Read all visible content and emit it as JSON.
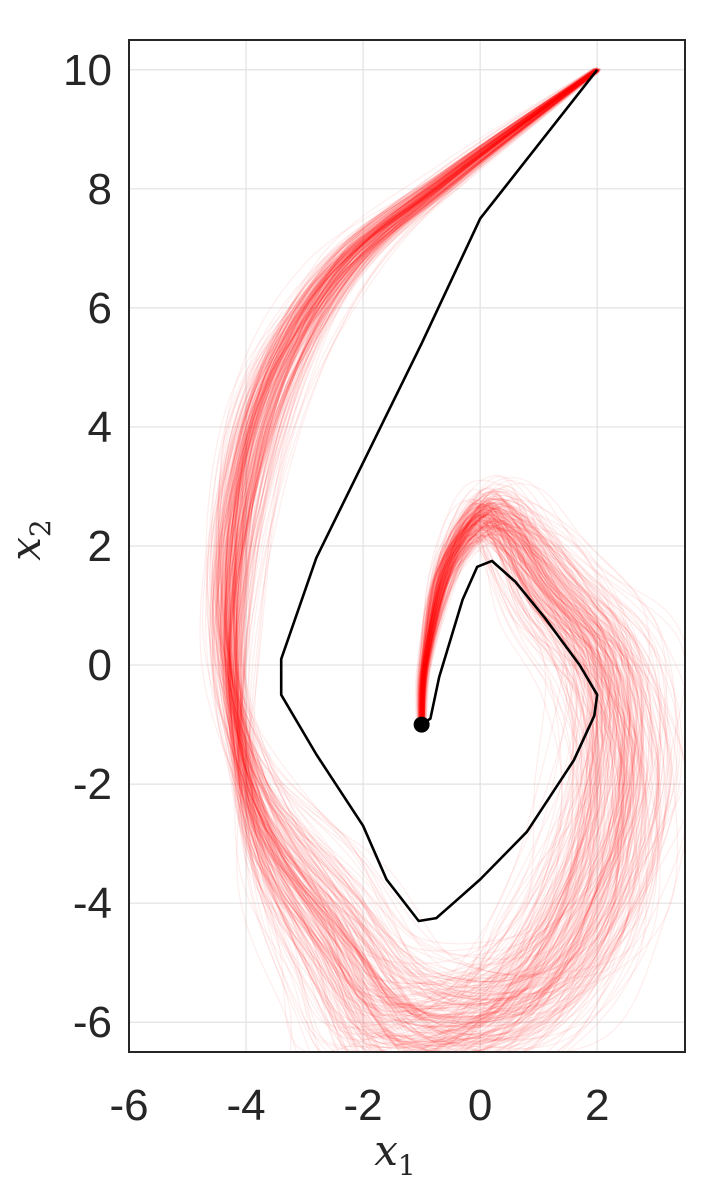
{
  "chart_data": {
    "type": "line",
    "title": "",
    "xlabel": "x",
    "xlabel_sub": "1",
    "ylabel": "x",
    "ylabel_sub": "2",
    "xlim": [
      -6,
      3.5
    ],
    "ylim": [
      -6.5,
      10.5
    ],
    "xticks": [
      -6,
      -4,
      -2,
      0,
      2
    ],
    "yticks": [
      -6,
      -4,
      -2,
      0,
      2,
      4,
      6,
      8,
      10
    ],
    "xtick_labels": [
      "-6",
      "-4",
      "-2",
      "0",
      "2"
    ],
    "ytick_labels": [
      "-6",
      "-4",
      "-2",
      "0",
      "2",
      "4",
      "6",
      "8",
      "10"
    ],
    "grid": true,
    "series": [
      {
        "color": "#000000",
        "points": [
          [
            2.0,
            10.0
          ],
          [
            0.8,
            8.5
          ],
          [
            0.0,
            7.5
          ],
          [
            -1.0,
            5.4
          ],
          [
            -2.8,
            1.8
          ],
          [
            -3.4,
            0.1
          ],
          [
            -3.4,
            -0.5
          ],
          [
            -2.8,
            -1.5
          ],
          [
            -2.0,
            -2.7
          ],
          [
            -1.6,
            -3.6
          ],
          [
            -1.05,
            -4.3
          ],
          [
            -0.75,
            -4.25
          ],
          [
            -0.4,
            -3.95
          ],
          [
            0.0,
            -3.6
          ],
          [
            0.8,
            -2.8
          ],
          [
            1.6,
            -1.6
          ],
          [
            1.95,
            -0.85
          ],
          [
            2.0,
            -0.5
          ],
          [
            1.7,
            0.0
          ],
          [
            1.1,
            0.8
          ],
          [
            0.6,
            1.4
          ],
          [
            0.2,
            1.75
          ],
          [
            -0.05,
            1.65
          ],
          [
            -0.3,
            1.1
          ],
          [
            -0.7,
            -0.2
          ],
          [
            -0.85,
            -0.9
          ],
          [
            -1.0,
            -1.0
          ]
        ]
      }
    ],
    "markers": [
      {
        "x": -1.0,
        "y": -1.0,
        "color": "#000000"
      }
    ],
    "ensemble": {
      "color": "#ff0000",
      "description_points": [
        [
          2.0,
          10.0
        ],
        [
          -0.5,
          8.2
        ],
        [
          -2.5,
          6.5
        ],
        [
          -3.8,
          4.0
        ],
        [
          -4.3,
          0.5
        ],
        [
          -3.8,
          -2.5
        ],
        [
          -2.5,
          -4.5
        ],
        [
          -1.4,
          -6.0
        ],
        [
          0.5,
          -5.8
        ],
        [
          1.8,
          -4.2
        ],
        [
          2.4,
          -2.0
        ],
        [
          2.2,
          0.0
        ],
        [
          1.2,
          1.3
        ],
        [
          0.5,
          2.3
        ],
        [
          0.0,
          2.5
        ],
        [
          -0.6,
          1.6
        ],
        [
          -0.95,
          0.0
        ],
        [
          -1.0,
          -1.0
        ]
      ]
    }
  }
}
